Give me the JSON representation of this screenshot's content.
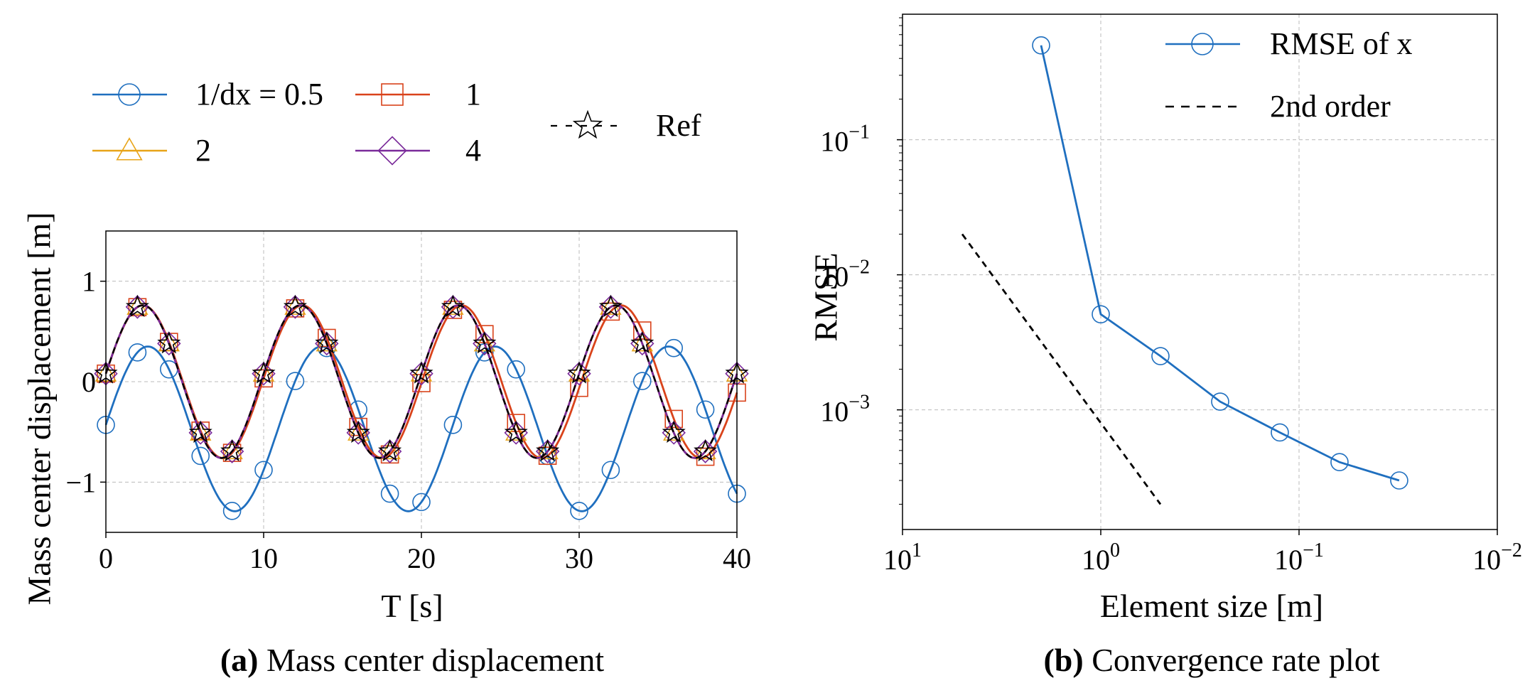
{
  "chart_data": [
    {
      "type": "line",
      "title": "",
      "caption_label": "(a)",
      "caption_text": "Mass center displacement",
      "xlabel": "T [s]",
      "ylabel": "Mass center displacement [m]",
      "xlim": [
        0,
        40
      ],
      "ylim": [
        -1.5,
        1.5
      ],
      "xticks": [
        0,
        10,
        20,
        30,
        40
      ],
      "yticks": [
        -1,
        0,
        1
      ],
      "xtick_labels": [
        "0",
        "10",
        "20",
        "30",
        "40"
      ],
      "ytick_labels": [
        "−1",
        "0",
        "1"
      ],
      "grid": true,
      "legend_position": "above plot",
      "series": [
        {
          "name": "1/dx = 0.5",
          "color": "#1f6fbf",
          "marker": "circle",
          "amplitude": 0.82,
          "offset": -0.47,
          "period": 11.0,
          "phase_x0": -0.43,
          "marker_times": [
            0,
            2,
            4,
            6,
            8,
            10,
            12,
            14,
            16,
            18,
            20,
            22,
            24,
            26,
            28,
            30,
            32,
            34,
            36,
            38,
            40
          ]
        },
        {
          "name": "1",
          "color": "#d9431b",
          "marker": "square",
          "amplitude": 0.76,
          "offset": 0.0,
          "period": 10.1,
          "phase_x0": 0.08,
          "marker_times": [
            0,
            2,
            4,
            6,
            8,
            10,
            12,
            14,
            16,
            18,
            20,
            22,
            24,
            26,
            28,
            30,
            32,
            34,
            36,
            38,
            40
          ]
        },
        {
          "name": "2",
          "color": "#e8a418",
          "marker": "triangle",
          "amplitude": 0.76,
          "offset": 0.0,
          "period": 10.0,
          "phase_x0": 0.08,
          "marker_times": [
            0,
            2,
            4,
            6,
            8,
            10,
            12,
            14,
            16,
            18,
            20,
            22,
            24,
            26,
            28,
            30,
            32,
            34,
            36,
            38,
            40
          ]
        },
        {
          "name": "4",
          "color": "#7a2a9a",
          "marker": "diamond",
          "amplitude": 0.76,
          "offset": 0.0,
          "period": 10.0,
          "phase_x0": 0.08,
          "marker_times": [
            0,
            2,
            4,
            6,
            8,
            10,
            12,
            14,
            16,
            18,
            20,
            22,
            24,
            26,
            28,
            30,
            32,
            34,
            36,
            38,
            40
          ]
        },
        {
          "name": "Ref",
          "color": "#000000",
          "marker": "star",
          "dashed": true,
          "amplitude": 0.76,
          "offset": 0.0,
          "period": 10.0,
          "phase_x0": 0.08,
          "marker_times": [
            0,
            2,
            4,
            6,
            8,
            10,
            12,
            14,
            16,
            18,
            20,
            22,
            24,
            26,
            28,
            30,
            32,
            34,
            36,
            38,
            40
          ]
        }
      ]
    },
    {
      "type": "line",
      "title": "",
      "caption_label": "(b)",
      "caption_text": "Convergence rate plot",
      "xlabel": "Element size [m]",
      "ylabel": "RMSE",
      "xscale": "log",
      "yscale": "log",
      "x_reversed": true,
      "xlim": [
        10,
        0.01
      ],
      "ylim": [
        0.00013,
        0.85
      ],
      "xticks": [
        10,
        1,
        0.1,
        0.01
      ],
      "xtick_labels": [
        {
          "base": "10",
          "exp": "1"
        },
        {
          "base": "10",
          "exp": "0"
        },
        {
          "base": "10",
          "exp": "−1"
        },
        {
          "base": "10",
          "exp": "−2"
        }
      ],
      "yticks": [
        0.1,
        0.01,
        0.001
      ],
      "ytick_labels": [
        {
          "base": "10",
          "exp": "−1"
        },
        {
          "base": "10",
          "exp": "−2"
        },
        {
          "base": "10",
          "exp": "−3"
        }
      ],
      "grid": true,
      "legend_position": "top-right",
      "series": [
        {
          "name": "RMSE of x",
          "color": "#1f6fbf",
          "marker": "circle",
          "x": [
            2,
            1,
            0.5,
            0.25,
            0.125,
            0.0625,
            0.03125
          ],
          "y": [
            0.5,
            0.0051,
            0.0025,
            0.00115,
            0.00068,
            0.00041,
            0.0003
          ]
        },
        {
          "name": "2nd order",
          "color": "#000000",
          "dashed": true,
          "x": [
            5,
            0.5
          ],
          "y": [
            0.02,
            0.0002
          ]
        }
      ]
    }
  ]
}
